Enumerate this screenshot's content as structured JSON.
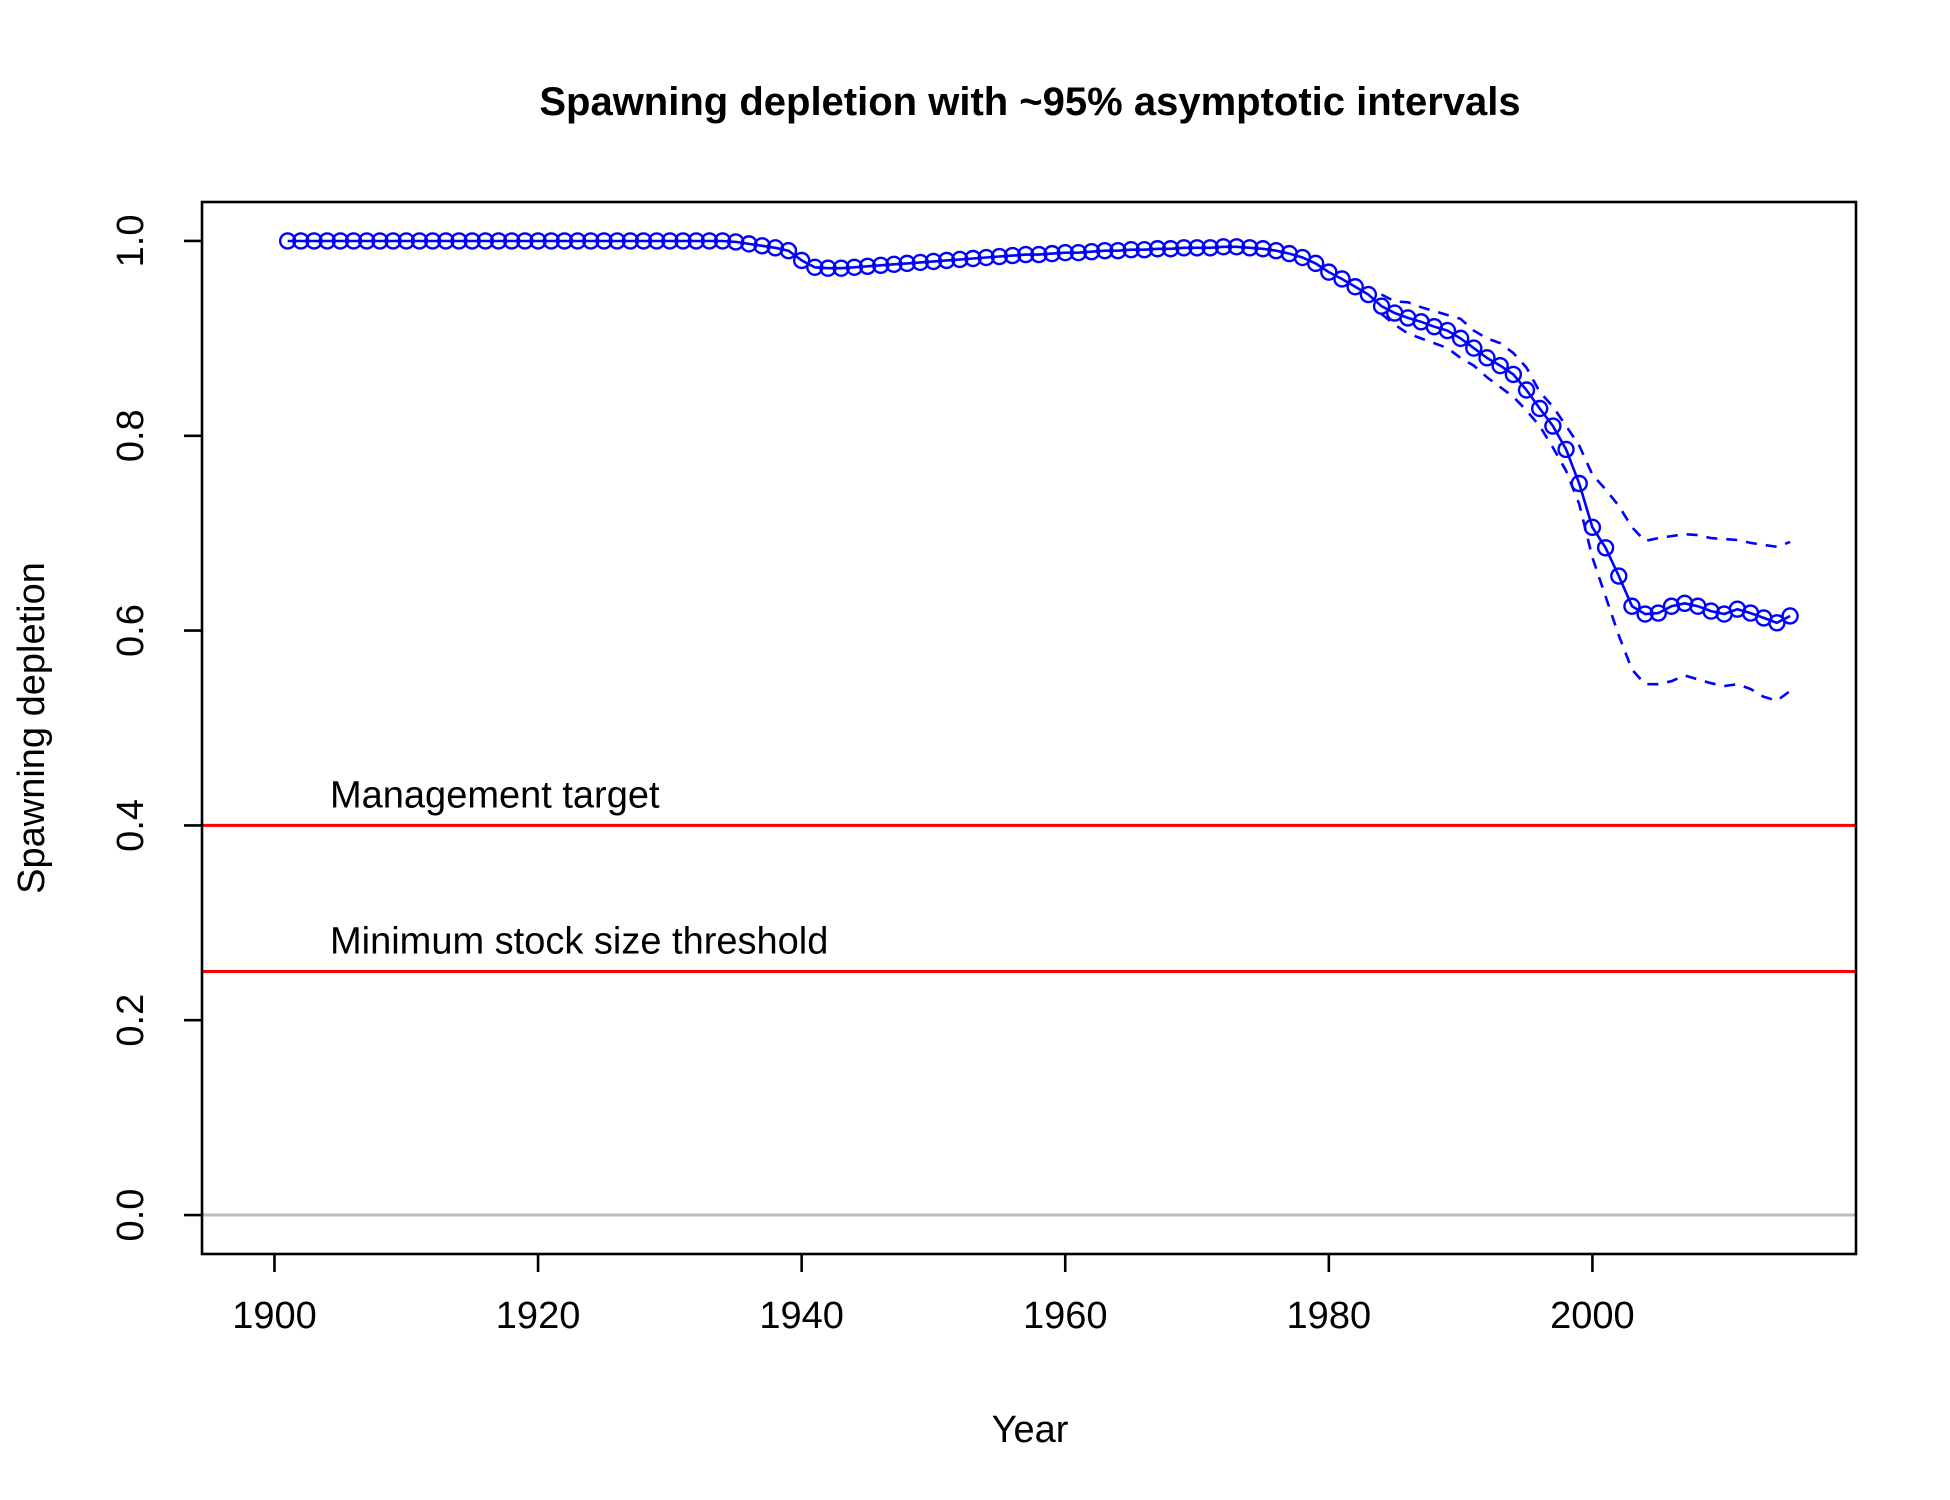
{
  "chart_data": {
    "type": "line",
    "title": "Spawning depletion with ~95% asymptotic intervals",
    "xlabel": "Year",
    "ylabel": "Spawning depletion",
    "xlim": [
      1894.5,
      2020
    ],
    "ylim": [
      -0.04,
      1.04
    ],
    "x_ticks": [
      1900,
      1920,
      1940,
      1960,
      1980,
      2000
    ],
    "y_ticks": [
      0.0,
      0.2,
      0.4,
      0.6,
      0.8,
      1.0
    ],
    "x_tick_labels": [
      "1900",
      "1920",
      "1940",
      "1960",
      "1980",
      "2000"
    ],
    "y_tick_labels": [
      "0.0",
      "0.2",
      "0.4",
      "0.6",
      "0.8",
      "1.0"
    ],
    "grid": false,
    "zero_line": {
      "value": 0.0,
      "color": "#bebebe"
    },
    "reference_lines": [
      {
        "label": "Management target",
        "value": 0.4,
        "color": "#ff0000"
      },
      {
        "label": "Minimum stock size threshold",
        "value": 0.25,
        "color": "#ff0000"
      }
    ],
    "series": [
      {
        "role": "estimate",
        "color": "#0000ff",
        "x": [
          1901,
          1902,
          1903,
          1904,
          1905,
          1906,
          1907,
          1908,
          1909,
          1910,
          1911,
          1912,
          1913,
          1914,
          1915,
          1916,
          1917,
          1918,
          1919,
          1920,
          1921,
          1922,
          1923,
          1924,
          1925,
          1926,
          1927,
          1928,
          1929,
          1930,
          1931,
          1932,
          1933,
          1934,
          1935,
          1936,
          1937,
          1938,
          1939,
          1940,
          1941,
          1942,
          1943,
          1944,
          1945,
          1946,
          1947,
          1948,
          1949,
          1950,
          1951,
          1952,
          1953,
          1954,
          1955,
          1956,
          1957,
          1958,
          1959,
          1960,
          1961,
          1962,
          1963,
          1964,
          1965,
          1966,
          1967,
          1968,
          1969,
          1970,
          1971,
          1972,
          1973,
          1974,
          1975,
          1976,
          1977,
          1978,
          1979,
          1980,
          1981,
          1982,
          1983,
          1984,
          1985,
          1986,
          1987,
          1988,
          1989,
          1990,
          1991,
          1992,
          1993,
          1994,
          1995,
          1996,
          1997,
          1998,
          1999,
          2000,
          2001,
          2002,
          2003,
          2004,
          2005,
          2006,
          2007,
          2008,
          2009,
          2010,
          2011,
          2012,
          2013,
          2014,
          2015
        ],
        "y": [
          1.0,
          1.0,
          1.0,
          1.0,
          1.0,
          1.0,
          1.0,
          1.0,
          1.0,
          1.0,
          1.0,
          1.0,
          1.0,
          1.0,
          1.0,
          1.0,
          1.0,
          1.0,
          1.0,
          1.0,
          1.0,
          1.0,
          1.0,
          1.0,
          1.0,
          1.0,
          1.0,
          1.0,
          1.0,
          1.0,
          1.0,
          1.0,
          1.0,
          1.0,
          0.999,
          0.997,
          0.995,
          0.993,
          0.99,
          0.98,
          0.973,
          0.972,
          0.972,
          0.973,
          0.974,
          0.975,
          0.976,
          0.977,
          0.978,
          0.979,
          0.98,
          0.981,
          0.982,
          0.983,
          0.984,
          0.985,
          0.986,
          0.986,
          0.987,
          0.988,
          0.988,
          0.989,
          0.99,
          0.99,
          0.991,
          0.991,
          0.992,
          0.992,
          0.993,
          0.993,
          0.993,
          0.994,
          0.994,
          0.993,
          0.992,
          0.99,
          0.987,
          0.983,
          0.977,
          0.968,
          0.961,
          0.953,
          0.945,
          0.933,
          0.926,
          0.921,
          0.917,
          0.912,
          0.908,
          0.9,
          0.89,
          0.88,
          0.872,
          0.863,
          0.847,
          0.828,
          0.81,
          0.786,
          0.751,
          0.706,
          0.685,
          0.656,
          0.625,
          0.617,
          0.618,
          0.625,
          0.628,
          0.625,
          0.62,
          0.617,
          0.622,
          0.618,
          0.613,
          0.608,
          0.615
        ]
      },
      {
        "role": "upper_95",
        "color": "#0000ff",
        "x": [
          1984,
          1985,
          1986,
          1987,
          1988,
          1989,
          1990,
          1991,
          1992,
          1993,
          1994,
          1995,
          1996,
          1997,
          1998,
          1999,
          2000,
          2001,
          2002,
          2003,
          2004,
          2005,
          2006,
          2007,
          2008,
          2009,
          2010,
          2011,
          2012,
          2013,
          2014,
          2015
        ],
        "y": [
          0.945,
          0.938,
          0.937,
          0.932,
          0.928,
          0.924,
          0.92,
          0.908,
          0.9,
          0.895,
          0.885,
          0.87,
          0.845,
          0.83,
          0.81,
          0.79,
          0.76,
          0.745,
          0.728,
          0.706,
          0.692,
          0.695,
          0.697,
          0.699,
          0.698,
          0.695,
          0.694,
          0.693,
          0.69,
          0.688,
          0.686,
          0.691
        ]
      },
      {
        "role": "lower_95",
        "color": "#0000ff",
        "x": [
          1984,
          1985,
          1986,
          1987,
          1988,
          1989,
          1990,
          1991,
          1992,
          1993,
          1994,
          1995,
          1996,
          1997,
          1998,
          1999,
          2000,
          2001,
          2002,
          2003,
          2004,
          2005,
          2006,
          2007,
          2008,
          2009,
          2010,
          2011,
          2012,
          2013,
          2014,
          2015
        ],
        "y": [
          0.925,
          0.914,
          0.905,
          0.9,
          0.895,
          0.89,
          0.88,
          0.872,
          0.86,
          0.85,
          0.84,
          0.826,
          0.81,
          0.788,
          0.764,
          0.73,
          0.675,
          0.635,
          0.595,
          0.56,
          0.545,
          0.545,
          0.548,
          0.554,
          0.55,
          0.546,
          0.543,
          0.545,
          0.54,
          0.532,
          0.528,
          0.538
        ]
      }
    ]
  }
}
